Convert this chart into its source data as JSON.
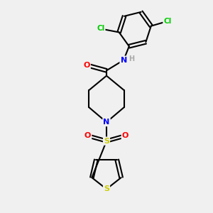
{
  "background_color": "#f0f0f0",
  "bond_color": "#000000",
  "atom_colors": {
    "N": "#0000ff",
    "O": "#ff0000",
    "S": "#cccc00",
    "Cl": "#00cc00",
    "H": "#aaaaaa",
    "C": "#000000"
  },
  "figsize": [
    3.0,
    3.0
  ],
  "dpi": 100
}
